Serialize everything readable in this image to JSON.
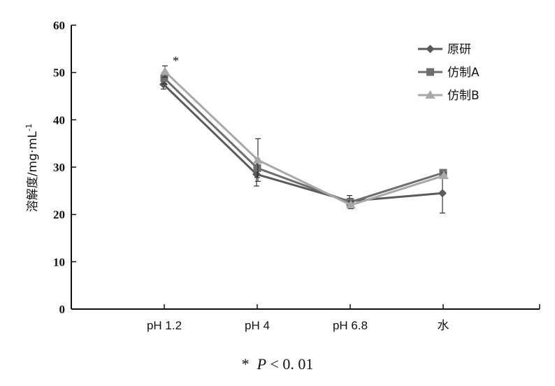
{
  "chart_data": {
    "type": "line",
    "categories": [
      "pH 1.2",
      "pH 4",
      "pH 6.8",
      "水"
    ],
    "ylabel": "溶解度/mg·mL",
    "ylabel_sup": "-1",
    "xlabel": "",
    "ylim": [
      0,
      60
    ],
    "yticks": [
      0,
      10,
      20,
      30,
      40,
      50,
      60
    ],
    "grid": false,
    "legend_position": "top-right",
    "significance_marker": {
      "text": "*",
      "category": "pH 1.2"
    },
    "series": [
      {
        "name": "原研",
        "marker": "diamond",
        "color": "#5a5a5a",
        "values": [
          47.5,
          28.5,
          22.8,
          24.5
        ],
        "errors": [
          1.0,
          2.5,
          1.2,
          4.2
        ]
      },
      {
        "name": "仿制A",
        "marker": "square",
        "color": "#6e6e6e",
        "values": [
          48.8,
          29.8,
          22.6,
          28.8
        ],
        "errors": [
          1.2,
          2.0,
          0.8,
          0.6
        ]
      },
      {
        "name": "仿制B",
        "marker": "triangle",
        "color": "#a8a8a8",
        "values": [
          50.2,
          31.5,
          22.0,
          28.2
        ],
        "errors": [
          1.2,
          4.5,
          0.8,
          0.6
        ]
      }
    ]
  },
  "footnote": {
    "star": "*",
    "p": "P",
    "rest": "< 0. 01"
  }
}
